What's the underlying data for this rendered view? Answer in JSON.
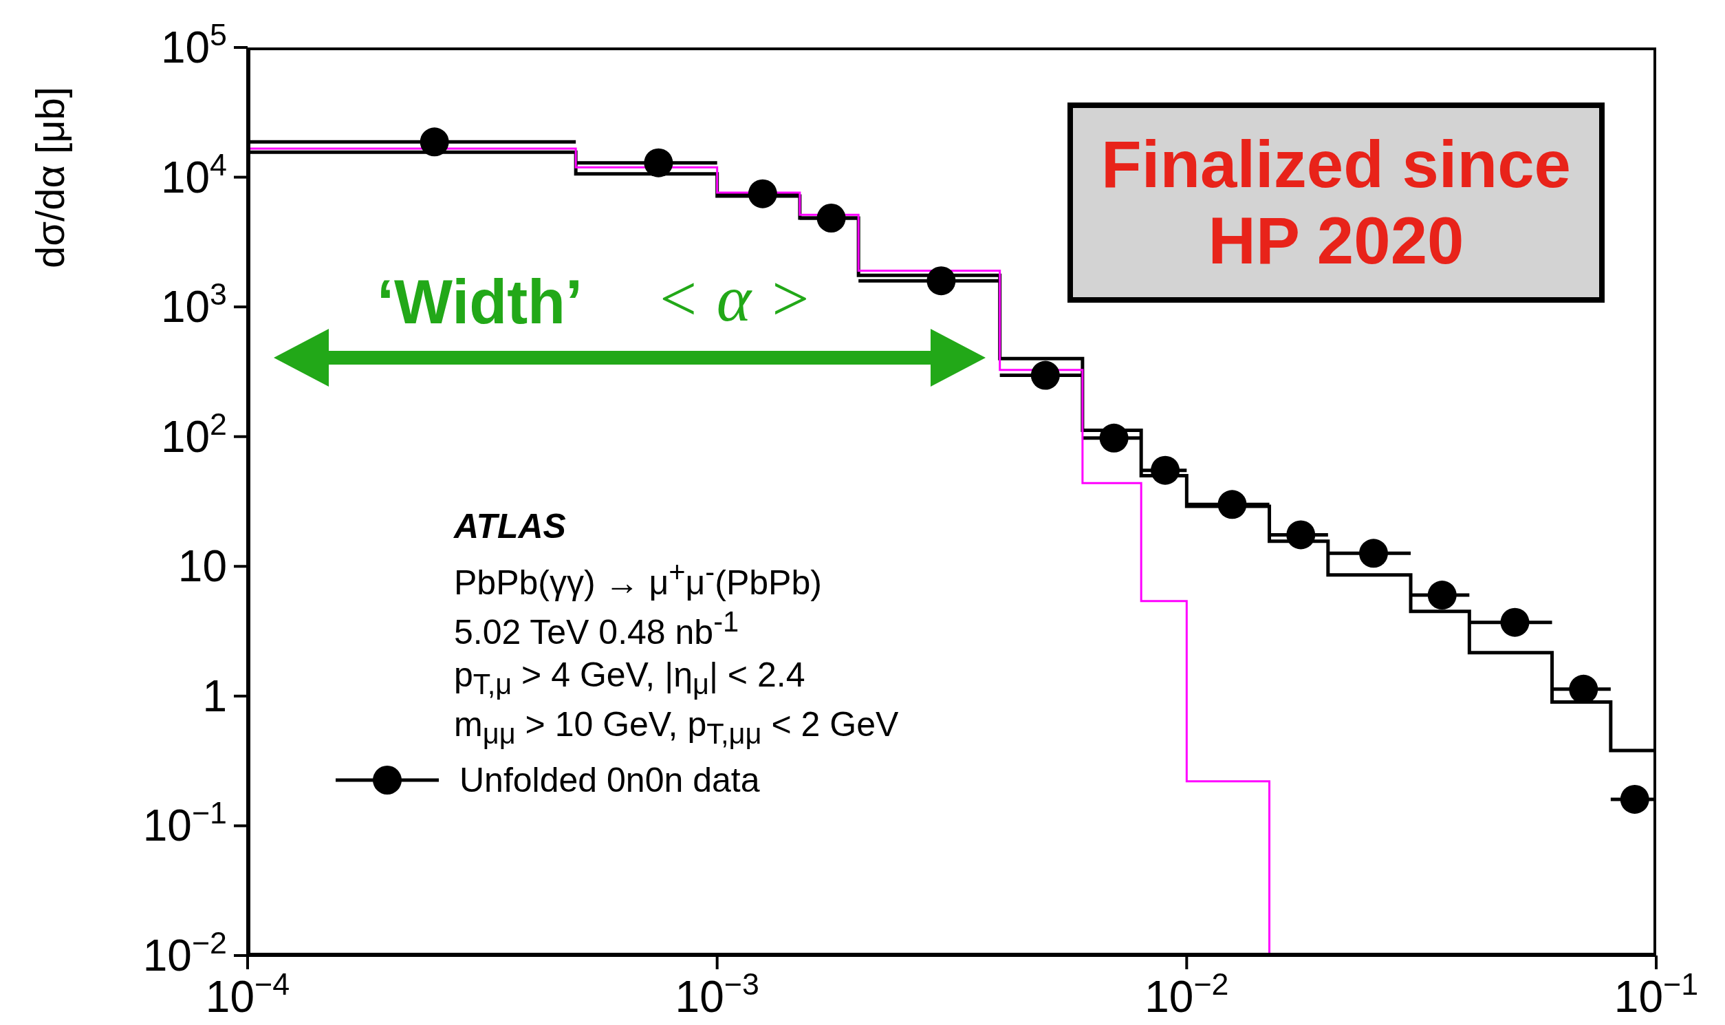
{
  "chart_data": {
    "type": "histogram",
    "ylabel": "dσ/dα [μb]",
    "bins": [
      0.0001,
      0.0005,
      0.001,
      0.0015,
      0.002,
      0.004,
      0.006,
      0.008,
      0.01,
      0.015,
      0.02,
      0.03,
      0.04,
      0.06,
      0.08,
      0.1
    ],
    "series": [
      {
        "type": "scatter",
        "name": "Unfolded 0n0n data",
        "color": "#000000",
        "x": [
          0.00025,
          0.00075,
          0.00125,
          0.00175,
          0.003,
          0.005,
          0.007,
          0.009,
          0.0125,
          0.0175,
          0.025,
          0.035,
          0.05,
          0.07,
          0.09
        ],
        "values": [
          18700,
          12900,
          7450,
          4840,
          1590,
          297,
          97.5,
          55,
          30,
          17.5,
          12.6,
          6.0,
          3.7,
          1.13,
          0.16
        ],
        "xerrors": [
          [
            0.0001,
            0.0005
          ],
          [
            0.0005,
            0.001
          ],
          [
            0.001,
            0.0015
          ],
          [
            0.0015,
            0.002
          ],
          [
            0.002,
            0.004
          ],
          [
            0.004,
            0.006
          ],
          [
            0.006,
            0.008
          ],
          [
            0.008,
            0.01
          ],
          [
            0.01,
            0.015
          ],
          [
            0.015,
            0.02
          ],
          [
            0.02,
            0.03
          ],
          [
            0.03,
            0.04
          ],
          [
            0.04,
            0.06
          ],
          [
            0.06,
            0.08
          ],
          [
            0.08,
            0.1
          ]
        ]
      },
      {
        "type": "histogram",
        "color": "#000000",
        "values": [
          15600,
          10600,
          7160,
          4840,
          1750,
          400,
          112,
          50,
          29,
          15.6,
          8.6,
          4.5,
          2.16,
          0.9,
          0.38
        ]
      },
      {
        "type": "histogram",
        "color": "#ff00ff",
        "values": [
          16600,
          11900,
          7600,
          5130,
          1900,
          327,
          43.8,
          5.4,
          0.22,
          null,
          null,
          null,
          null,
          null,
          null
        ]
      }
    ],
    "log": "xy",
    "xlim": [
      0.0001,
      0.1
    ],
    "ylim": [
      0.01,
      100000
    ],
    "xticks": [
      {
        "value": 0.0001,
        "label": "10$^{−4}$"
      },
      {
        "value": 0.001,
        "label": "10$^{−3}$"
      },
      {
        "value": 0.01,
        "label": "10$^{−2}$"
      },
      {
        "value": 0.1,
        "label": "10$^{−1}$"
      }
    ],
    "yticks": [
      {
        "value": 0.01,
        "label": "10$^{−2}$"
      },
      {
        "value": 0.1,
        "label": "10$^{−1}$"
      },
      1,
      10,
      {
        "value": 100,
        "label": "10$^{2}$"
      },
      {
        "value": 1000,
        "label": "10$^{3}$"
      },
      {
        "value": 10000,
        "label": "10$^{4}$"
      },
      {
        "value": 100000,
        "label": "10$^{5}$"
      }
    ],
    "marker": "circle",
    "legend": "bottom left",
    "grid": false,
    "annotations": [
      "‘Width’",
      "< α >",
      "Finalized since HP 2020",
      "ATLAS",
      "PbPb(γγ) → μ$^{+}$μ$^{-}$(PbPb)",
      "5.02 TeV 0.48 nb$^{-1}$",
      "p$_{T,μ}$ > 4 GeV, |η$_{μ}$| < 2.4",
      "m$_{μμ}$ > 10 GeV, p$_{T,μμ}$ < 2 GeV"
    ]
  }
}
